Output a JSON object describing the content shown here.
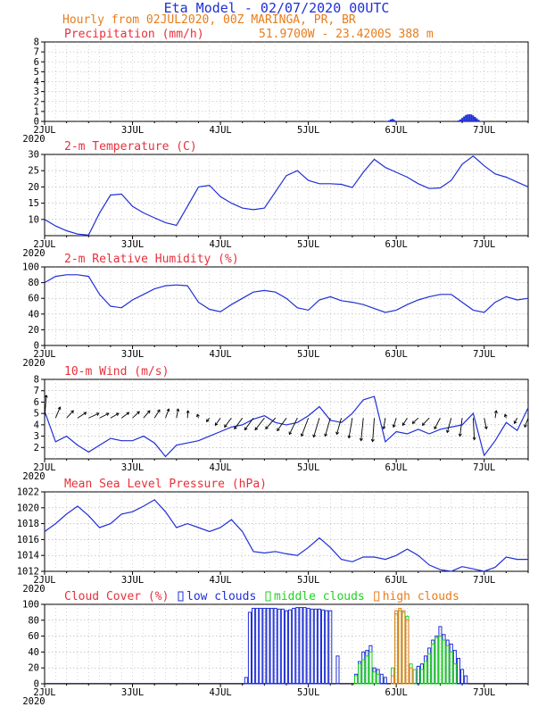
{
  "header": {
    "title": "Eta Model - 02/07/2020 00UTC",
    "subtitle": "Hourly from 02JUL2020, 00Z  MARINGA, PR, BR",
    "location": "51.9700W - 23.4200S    388  m"
  },
  "colors": {
    "title": "#1f2fd6",
    "subtitle": "#e87c1a",
    "panel_title": "#e8303a",
    "line": "#1f2fd6",
    "wind": "#000000",
    "low_clouds": "#1f2fd6",
    "middle_clouds": "#1fd21f",
    "high_clouds": "#e87c1a",
    "grid": "#aaaaaa"
  },
  "chart_data": [
    {
      "type": "bar",
      "id": "precip",
      "title": "Precipitation (mm/h)",
      "ylim": [
        0,
        8
      ],
      "yticks": [
        0,
        1,
        2,
        3,
        4,
        5,
        6,
        7,
        8
      ],
      "xlabels": [
        "2JUL",
        "3JUL",
        "4JUL",
        "5JUL",
        "6JUL",
        "7JUL"
      ],
      "year_label": "2020",
      "x": [
        93.5,
        94,
        94.5,
        95,
        95.5,
        96,
        113,
        113.5,
        114,
        114.5,
        115,
        115.5,
        116,
        116.5,
        117,
        117.5,
        118,
        118.5,
        119
      ],
      "values": [
        0.05,
        0.1,
        0.2,
        0.25,
        0.15,
        0.05,
        0.1,
        0.2,
        0.35,
        0.5,
        0.65,
        0.7,
        0.72,
        0.7,
        0.6,
        0.45,
        0.3,
        0.15,
        0.05
      ]
    },
    {
      "type": "line",
      "id": "temp",
      "title": "2-m Temperature (C)",
      "ylim": [
        5,
        30
      ],
      "yticks": [
        10,
        15,
        20,
        25,
        30
      ],
      "xlabels": [
        "2JUL",
        "3JUL",
        "4JUL",
        "5JUL",
        "6JUL",
        "7JUL"
      ],
      "year_label": "2020",
      "x": [
        0,
        3,
        6,
        9,
        12,
        15,
        18,
        21,
        24,
        27,
        30,
        33,
        36,
        39,
        42,
        45,
        48,
        51,
        54,
        57,
        60,
        63,
        66,
        69,
        72,
        75,
        78,
        81,
        84,
        87,
        90,
        93,
        96,
        99,
        102,
        105,
        108,
        111,
        114,
        117,
        120,
        123,
        126,
        129,
        132
      ],
      "values": [
        10,
        8,
        6.5,
        5.5,
        5.2,
        12,
        17.5,
        17.8,
        14,
        12,
        10.5,
        9,
        8.2,
        14,
        20,
        20.5,
        17,
        15,
        13.5,
        13,
        13.5,
        18.5,
        23.5,
        25,
        22,
        21,
        21,
        20.8,
        19.8,
        24.5,
        28.5,
        26,
        24.5,
        23,
        21,
        19.5,
        19.7,
        22,
        27,
        29.5,
        26.5,
        24,
        23,
        21.5,
        20
      ]
    },
    {
      "type": "line",
      "id": "rh",
      "title": "2-m Relative Humidity (%)",
      "ylim": [
        0,
        100
      ],
      "yticks": [
        0,
        20,
        40,
        60,
        80,
        100
      ],
      "xlabels": [
        "2JUL",
        "3JUL",
        "4JUL",
        "5JUL",
        "6JUL",
        "7JUL"
      ],
      "year_label": "2020",
      "x": [
        0,
        3,
        6,
        9,
        12,
        15,
        18,
        21,
        24,
        27,
        30,
        33,
        36,
        39,
        42,
        45,
        48,
        51,
        54,
        57,
        60,
        63,
        66,
        69,
        72,
        75,
        78,
        81,
        84,
        87,
        90,
        93,
        96,
        99,
        102,
        105,
        108,
        111,
        114,
        117,
        120,
        123,
        126,
        129,
        132
      ],
      "values": [
        80,
        88,
        90,
        90,
        88,
        65,
        50,
        48,
        58,
        65,
        72,
        76,
        77,
        76,
        55,
        46,
        43,
        52,
        60,
        68,
        70,
        68,
        60,
        48,
        45,
        58,
        62,
        57,
        55,
        52,
        47,
        42,
        45,
        52,
        58,
        62,
        65,
        65,
        55,
        45,
        42,
        55,
        62,
        58,
        60
      ]
    },
    {
      "type": "line",
      "id": "wind",
      "title": "10-m Wind (m/s)",
      "ylim": [
        1,
        8
      ],
      "yticks": [
        2,
        3,
        4,
        5,
        6,
        7,
        8
      ],
      "xlabels": [
        "2JUL",
        "3JUL",
        "4JUL",
        "5JUL",
        "6JUL",
        "7JUL"
      ],
      "year_label": "2020",
      "x": [
        0,
        3,
        6,
        9,
        12,
        15,
        18,
        21,
        24,
        27,
        30,
        33,
        36,
        39,
        42,
        45,
        48,
        51,
        54,
        57,
        60,
        63,
        66,
        69,
        72,
        75,
        78,
        81,
        84,
        87,
        90,
        93,
        96,
        99,
        102,
        105,
        108,
        111,
        114,
        117,
        120,
        123,
        126,
        129,
        132
      ],
      "values": [
        5.2,
        2.5,
        3,
        2.2,
        1.6,
        2.2,
        2.8,
        2.6,
        2.6,
        3,
        2.4,
        1.2,
        2.2,
        2.4,
        2.6,
        3,
        3.4,
        3.8,
        4,
        4.5,
        4.8,
        4.2,
        4,
        4.2,
        4.8,
        5.6,
        4.4,
        4.2,
        5,
        6.2,
        6.5,
        2.5,
        3.4,
        3.2,
        3.6,
        3.2,
        3.6,
        3.8,
        4,
        5,
        1.3,
        2.6,
        4.2,
        3.5,
        5.5
      ],
      "vectors": {
        "baseline": 4.6,
        "scale": 1.6,
        "u": [
          0.3,
          0.8,
          1.2,
          1.5,
          1.8,
          1.6,
          1.4,
          1.3,
          1.2,
          1.1,
          0.9,
          0.6,
          0.3,
          0.1,
          -0.2,
          -0.5,
          -0.9,
          -1.2,
          -1.4,
          -1.5,
          -1.6,
          -1.7,
          -1.6,
          -1.4,
          -1.2,
          -1.0,
          -0.9,
          -0.8,
          -0.6,
          -0.4,
          -0.3,
          -0.3,
          -0.5,
          -0.8,
          -1.0,
          -1.2,
          -1.0,
          -0.7,
          -0.4,
          0.2,
          0.4,
          0.2,
          -0.2,
          -0.5,
          -0.6
        ],
        "v": [
          2.5,
          1.2,
          0.8,
          0.6,
          0.5,
          0.5,
          0.5,
          0.6,
          0.7,
          0.8,
          0.9,
          1.0,
          1.0,
          0.8,
          0.4,
          -0.4,
          -0.8,
          -1.0,
          -1.2,
          -1.3,
          -1.3,
          -1.2,
          -1.4,
          -1.8,
          -2.0,
          -2.1,
          -2.0,
          -1.8,
          -2.2,
          -2.5,
          -2.6,
          -1.2,
          -1.0,
          -0.8,
          -0.6,
          -0.8,
          -1.2,
          -1.6,
          -2.0,
          -2.4,
          -1.2,
          0.8,
          0.4,
          -0.6,
          -1.0
        ]
      }
    },
    {
      "type": "line",
      "id": "mslp",
      "title": "Mean Sea Level Pressure (hPa)",
      "ylim": [
        1012,
        1022
      ],
      "yticks": [
        1012,
        1014,
        1016,
        1018,
        1020,
        1022
      ],
      "xlabels": [
        "2JUL",
        "3JUL",
        "4JUL",
        "5JUL",
        "6JUL",
        "7JUL"
      ],
      "year_label": "2020",
      "x": [
        0,
        3,
        6,
        9,
        12,
        15,
        18,
        21,
        24,
        27,
        30,
        33,
        36,
        39,
        42,
        45,
        48,
        51,
        54,
        57,
        60,
        63,
        66,
        69,
        72,
        75,
        78,
        81,
        84,
        87,
        90,
        93,
        96,
        99,
        102,
        105,
        108,
        111,
        114,
        117,
        120,
        123,
        126,
        129,
        132
      ],
      "values": [
        1017,
        1018,
        1019.2,
        1020.2,
        1019,
        1017.5,
        1018,
        1019.2,
        1019.5,
        1020.2,
        1021,
        1019.5,
        1017.5,
        1018,
        1017.5,
        1017,
        1017.5,
        1018.5,
        1017,
        1014.5,
        1014.3,
        1014.5,
        1014.2,
        1014,
        1015,
        1016.2,
        1015,
        1013.5,
        1013.2,
        1013.8,
        1013.8,
        1013.5,
        1014,
        1014.8,
        1014,
        1012.8,
        1012.2,
        1011.8,
        1012.6,
        1012.3,
        1012,
        1012.5,
        1013.8,
        1013.5,
        1013.5
      ]
    },
    {
      "type": "bar",
      "id": "cloud",
      "title": "Cloud Cover (%)",
      "ylim": [
        0,
        100
      ],
      "yticks": [
        0,
        20,
        40,
        60,
        80,
        100
      ],
      "xlabels": [
        "2JUL",
        "3JUL",
        "4JUL",
        "5JUL",
        "6JUL",
        "7JUL"
      ],
      "year_label": "2020",
      "legend": [
        "low clouds",
        "middle clouds",
        "high clouds"
      ],
      "series": [
        {
          "name": "low clouds",
          "x": [
            55,
            56,
            57,
            58,
            59,
            60,
            61,
            62,
            63,
            64,
            65,
            66,
            67,
            68,
            69,
            70,
            71,
            72,
            73,
            74,
            75,
            76,
            77,
            78,
            80,
            85,
            86,
            87,
            88,
            89,
            90,
            91,
            92,
            93,
            102,
            103,
            104,
            105,
            106,
            107,
            108,
            109,
            110,
            111,
            112,
            113,
            114,
            115
          ],
          "values": [
            8,
            90,
            95,
            95,
            95,
            95,
            95,
            95,
            95,
            94,
            94,
            92,
            93,
            95,
            96,
            96,
            96,
            95,
            94,
            94,
            94,
            93,
            92,
            92,
            35,
            12,
            28,
            40,
            42,
            48,
            20,
            18,
            12,
            8,
            22,
            25,
            35,
            45,
            55,
            60,
            72,
            62,
            55,
            50,
            42,
            32,
            18,
            10
          ]
        },
        {
          "name": "middle clouds",
          "x": [
            85,
            86,
            87,
            88,
            89,
            90,
            91,
            95,
            96,
            97,
            98,
            99,
            100,
            101,
            103,
            104,
            105,
            106,
            107,
            108,
            109,
            110,
            111,
            112
          ],
          "values": [
            10,
            25,
            30,
            35,
            40,
            15,
            12,
            20,
            88,
            92,
            90,
            85,
            25,
            18,
            18,
            28,
            38,
            50,
            58,
            60,
            55,
            48,
            40,
            25
          ]
        },
        {
          "name": "high clouds",
          "x": [
            95,
            96,
            97,
            98,
            99,
            100
          ],
          "values": [
            10,
            92,
            95,
            92,
            80,
            20
          ]
        }
      ]
    }
  ]
}
